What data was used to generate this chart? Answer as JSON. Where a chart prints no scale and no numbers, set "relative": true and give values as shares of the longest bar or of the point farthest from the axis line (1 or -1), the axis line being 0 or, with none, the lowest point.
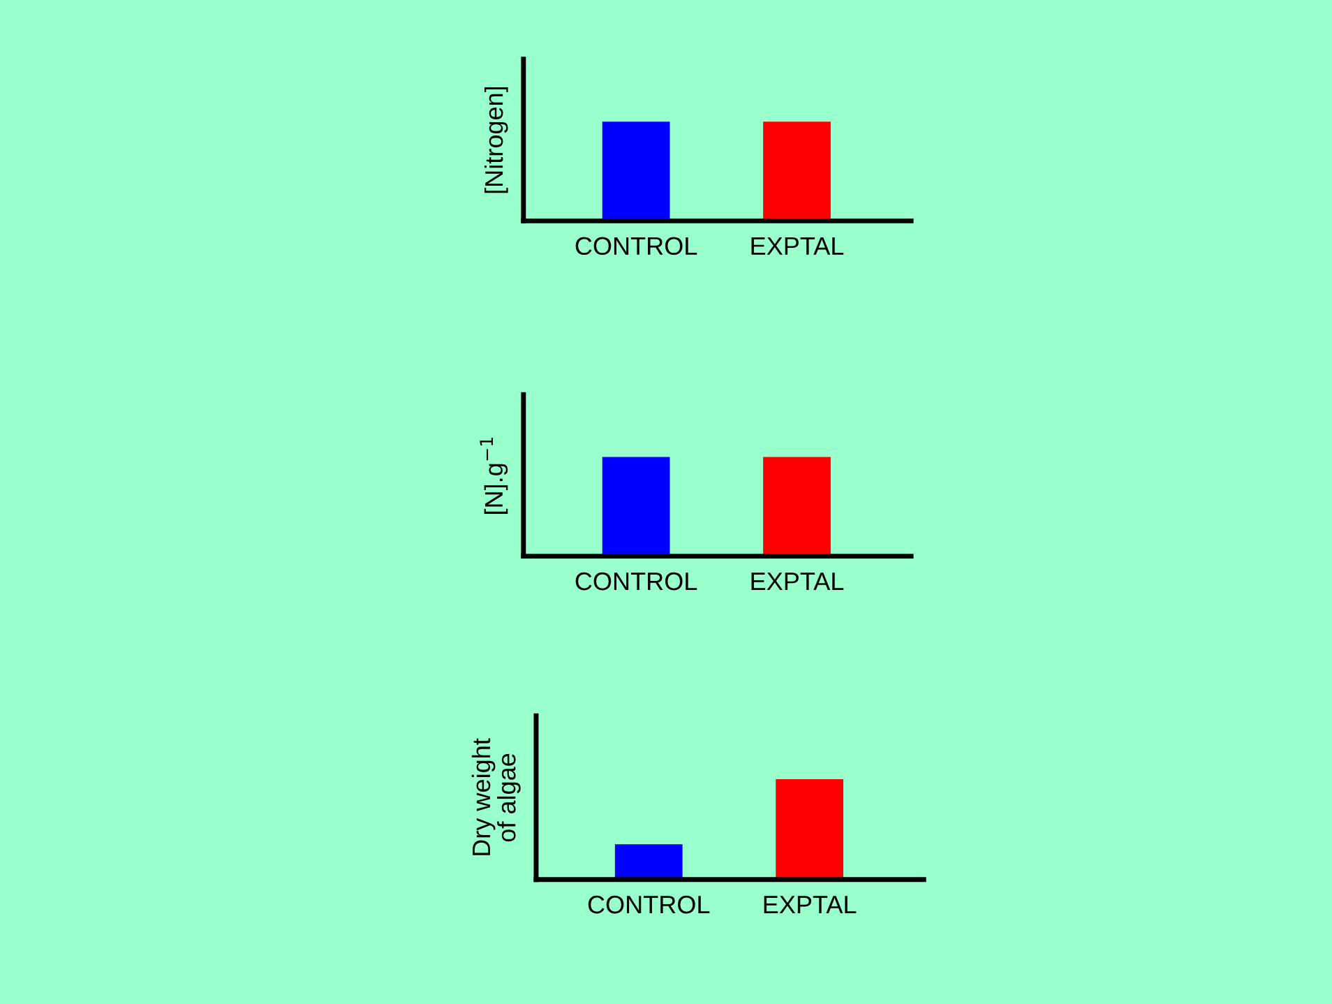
{
  "chart_data": [
    {
      "type": "bar",
      "ylabel": "[Nitrogen]",
      "categories": [
        "CONTROL",
        "EXPTAL"
      ],
      "relative": true,
      "values": [
        1,
        1
      ],
      "colors": [
        "#0000ff",
        "#ff0000"
      ],
      "tick_labels": "x",
      "grid": false,
      "legend": false
    },
    {
      "type": "bar",
      "ylabel": "[N].g$^{−1}$",
      "categories": [
        "CONTROL",
        "EXPTAL"
      ],
      "relative": true,
      "values": [
        1,
        1
      ],
      "colors": [
        "#0000ff",
        "#ff0000"
      ],
      "tick_labels": "x",
      "grid": false,
      "legend": false
    },
    {
      "type": "bar",
      "ylabel": "Dry weight\nof algae",
      "categories": [
        "CONTROL",
        "EXPTAL"
      ],
      "relative": true,
      "values": [
        0.35,
        1
      ],
      "colors": [
        "#0000ff",
        "#ff0000"
      ],
      "tick_labels": "x",
      "grid": false,
      "legend": false
    }
  ]
}
